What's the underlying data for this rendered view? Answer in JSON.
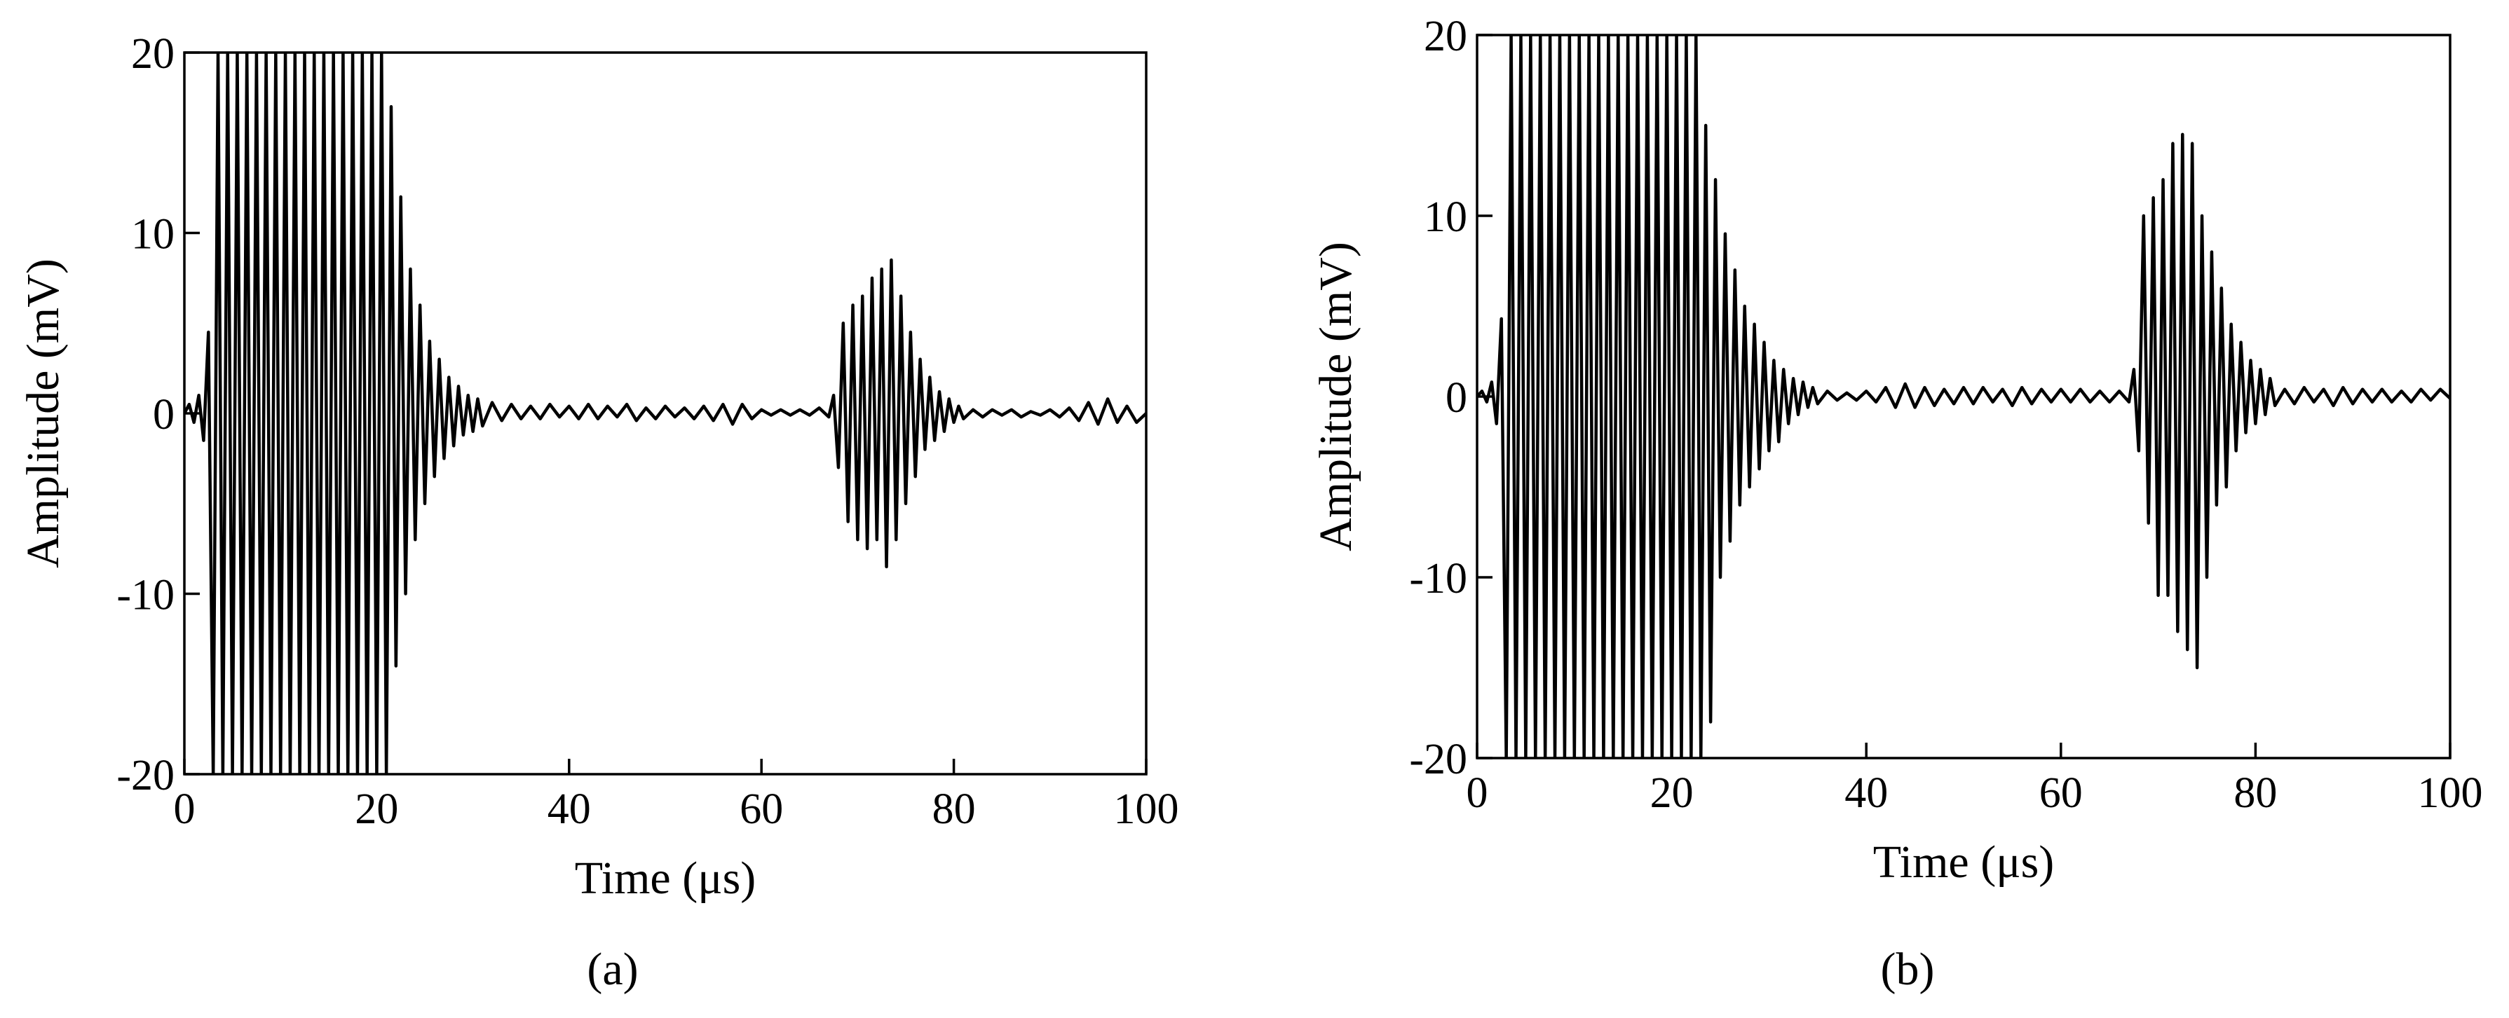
{
  "chart_data": [
    {
      "type": "line",
      "caption": "(a)",
      "x_label": "Time (μs)",
      "y_label": "Amplitude (mV)",
      "xlim": [
        0,
        100
      ],
      "ylim": [
        -20,
        20
      ],
      "xticks": [
        0,
        20,
        40,
        60,
        80,
        100
      ],
      "yticks": [
        -20,
        -10,
        0,
        10,
        20
      ],
      "color": "#000000",
      "x": [
        0,
        0.5,
        1,
        1.5,
        2,
        2.5,
        3,
        3.5,
        4,
        4.5,
        5,
        5.5,
        6,
        6.5,
        7,
        7.5,
        8,
        8.5,
        9,
        9.5,
        10,
        10.5,
        11,
        11.5,
        12,
        12.5,
        13,
        13.5,
        14,
        14.5,
        15,
        15.5,
        16,
        16.5,
        17,
        17.5,
        18,
        18.5,
        19,
        19.5,
        20,
        20.5,
        21,
        21.5,
        22,
        22.5,
        23,
        23.5,
        24,
        24.5,
        25,
        25.5,
        26,
        26.5,
        27,
        27.5,
        28,
        28.5,
        29,
        29.5,
        30,
        30.5,
        31,
        32,
        33,
        34,
        35,
        36,
        37,
        38,
        39,
        40,
        41,
        42,
        43,
        44,
        45,
        46,
        47,
        48,
        49,
        50,
        51,
        52,
        53,
        54,
        55,
        56,
        57,
        58,
        59,
        60,
        61,
        62,
        63,
        64,
        65,
        66,
        67,
        67.5,
        68,
        68.5,
        69,
        69.5,
        70,
        70.5,
        71,
        71.5,
        72,
        72.5,
        73,
        73.5,
        74,
        74.5,
        75,
        75.5,
        76,
        76.5,
        77,
        77.5,
        78,
        78.5,
        79,
        79.5,
        80,
        80.5,
        81,
        82,
        83,
        84,
        85,
        86,
        87,
        88,
        89,
        90,
        91,
        92,
        93,
        94,
        95,
        96,
        97,
        98,
        99,
        100
      ],
      "values": [
        0,
        0.5,
        -0.5,
        1,
        -1.5,
        4.5,
        -20,
        20,
        -20,
        20,
        -20,
        20,
        -20,
        20,
        -20,
        20,
        -20,
        20,
        -20,
        20,
        -20,
        20,
        -20,
        20,
        -20,
        20,
        -20,
        20,
        -20,
        20,
        -20,
        20,
        -20,
        20,
        -20,
        20,
        -20,
        20,
        -20,
        20,
        -20,
        20,
        -20,
        17,
        -14,
        12,
        -10,
        8,
        -7,
        6,
        -5,
        4,
        -3.5,
        3,
        -2.5,
        2,
        -1.8,
        1.5,
        -1.2,
        1,
        -1,
        0.8,
        -0.7,
        0.6,
        -0.4,
        0.5,
        -0.3,
        0.4,
        -0.3,
        0.5,
        -0.2,
        0.4,
        -0.3,
        0.5,
        -0.3,
        0.4,
        -0.2,
        0.5,
        -0.4,
        0.3,
        -0.3,
        0.4,
        -0.2,
        0.3,
        -0.3,
        0.4,
        -0.4,
        0.5,
        -0.6,
        0.5,
        -0.3,
        0.2,
        -0.1,
        0.2,
        -0.1,
        0.2,
        -0.1,
        0.3,
        -0.2,
        1,
        -3,
        5,
        -6,
        6,
        -7,
        6.5,
        -7.5,
        7.5,
        -7,
        8,
        -8.5,
        8.5,
        -7,
        6.5,
        -5,
        4.5,
        -3.5,
        3,
        -2,
        2,
        -1.5,
        1.2,
        -1,
        0.8,
        -0.5,
        0.4,
        -0.3,
        0.2,
        -0.2,
        0.2,
        -0.1,
        0.2,
        -0.2,
        0.1,
        -0.1,
        0.2,
        -0.2,
        0.3,
        -0.4,
        0.6,
        -0.6,
        0.8,
        -0.5,
        0.4,
        -0.5,
        0
      ]
    },
    {
      "type": "line",
      "caption": "(b)",
      "x_label": "Time (μs)",
      "y_label": "Amplitude (mV)",
      "xlim": [
        0,
        100
      ],
      "ylim": [
        -20,
        20
      ],
      "xticks": [
        0,
        20,
        40,
        60,
        80,
        100
      ],
      "yticks": [
        -20,
        -10,
        0,
        10,
        20
      ],
      "color": "#000000",
      "x": [
        0,
        0.5,
        1,
        1.5,
        2,
        2.5,
        3,
        3.5,
        4,
        4.5,
        5,
        5.5,
        6,
        6.5,
        7,
        7.5,
        8,
        8.5,
        9,
        9.5,
        10,
        10.5,
        11,
        11.5,
        12,
        12.5,
        13,
        13.5,
        14,
        14.5,
        15,
        15.5,
        16,
        16.5,
        17,
        17.5,
        18,
        18.5,
        19,
        19.5,
        20,
        20.5,
        21,
        21.5,
        22,
        22.5,
        23,
        23.5,
        24,
        24.5,
        25,
        25.5,
        26,
        26.5,
        27,
        27.5,
        28,
        28.5,
        29,
        29.5,
        30,
        30.5,
        31,
        31.5,
        32,
        32.5,
        33,
        33.5,
        34,
        34.5,
        35,
        36,
        37,
        38,
        39,
        40,
        41,
        42,
        43,
        44,
        45,
        46,
        47,
        48,
        49,
        50,
        51,
        52,
        53,
        54,
        55,
        56,
        57,
        58,
        59,
        60,
        61,
        62,
        63,
        64,
        65,
        66,
        67,
        67.5,
        68,
        68.5,
        69,
        69.5,
        70,
        70.5,
        71,
        71.5,
        72,
        72.5,
        73,
        73.5,
        74,
        74.5,
        75,
        75.5,
        76,
        76.5,
        77,
        77.5,
        78,
        78.5,
        79,
        79.5,
        80,
        80.5,
        81,
        81.5,
        82,
        83,
        84,
        85,
        86,
        87,
        88,
        89,
        90,
        91,
        92,
        93,
        94,
        95,
        96,
        97,
        98,
        99,
        100
      ],
      "values": [
        0,
        0.3,
        -0.3,
        0.8,
        -1.5,
        4.3,
        -20,
        20,
        -20,
        20,
        -20,
        20,
        -20,
        20,
        -20,
        20,
        -20,
        20,
        -20,
        20,
        -20,
        20,
        -20,
        20,
        -20,
        20,
        -20,
        20,
        -20,
        20,
        -20,
        20,
        -20,
        20,
        -20,
        20,
        -20,
        20,
        -20,
        20,
        -20,
        20,
        -20,
        20,
        -20,
        20,
        -20,
        15,
        -18,
        12,
        -10,
        9,
        -8,
        7,
        -6,
        5,
        -5,
        4,
        -4,
        3,
        -3,
        2,
        -2.5,
        1.5,
        -1.5,
        1,
        -1,
        0.8,
        -0.6,
        0.5,
        -0.4,
        0.3,
        -0.2,
        0.2,
        -0.2,
        0.3,
        -0.3,
        0.5,
        -0.6,
        0.7,
        -0.6,
        0.5,
        -0.5,
        0.4,
        -0.4,
        0.5,
        -0.4,
        0.5,
        -0.3,
        0.4,
        -0.5,
        0.5,
        -0.4,
        0.4,
        -0.3,
        0.4,
        -0.3,
        0.4,
        -0.3,
        0.3,
        -0.3,
        0.3,
        -0.3,
        1.5,
        -3,
        10,
        -7,
        11,
        -11,
        12,
        -11,
        14,
        -13,
        14.5,
        -14,
        14,
        -15,
        10,
        -10,
        8,
        -6,
        6,
        -5,
        4,
        -3,
        3,
        -2,
        2,
        -1.5,
        1.5,
        -1,
        1,
        -0.5,
        0.4,
        -0.4,
        0.5,
        -0.3,
        0.4,
        -0.5,
        0.5,
        -0.4,
        0.4,
        -0.3,
        0.4,
        -0.3,
        0.3,
        -0.3,
        0.4,
        -0.2,
        0.4,
        -0.1
      ]
    }
  ]
}
